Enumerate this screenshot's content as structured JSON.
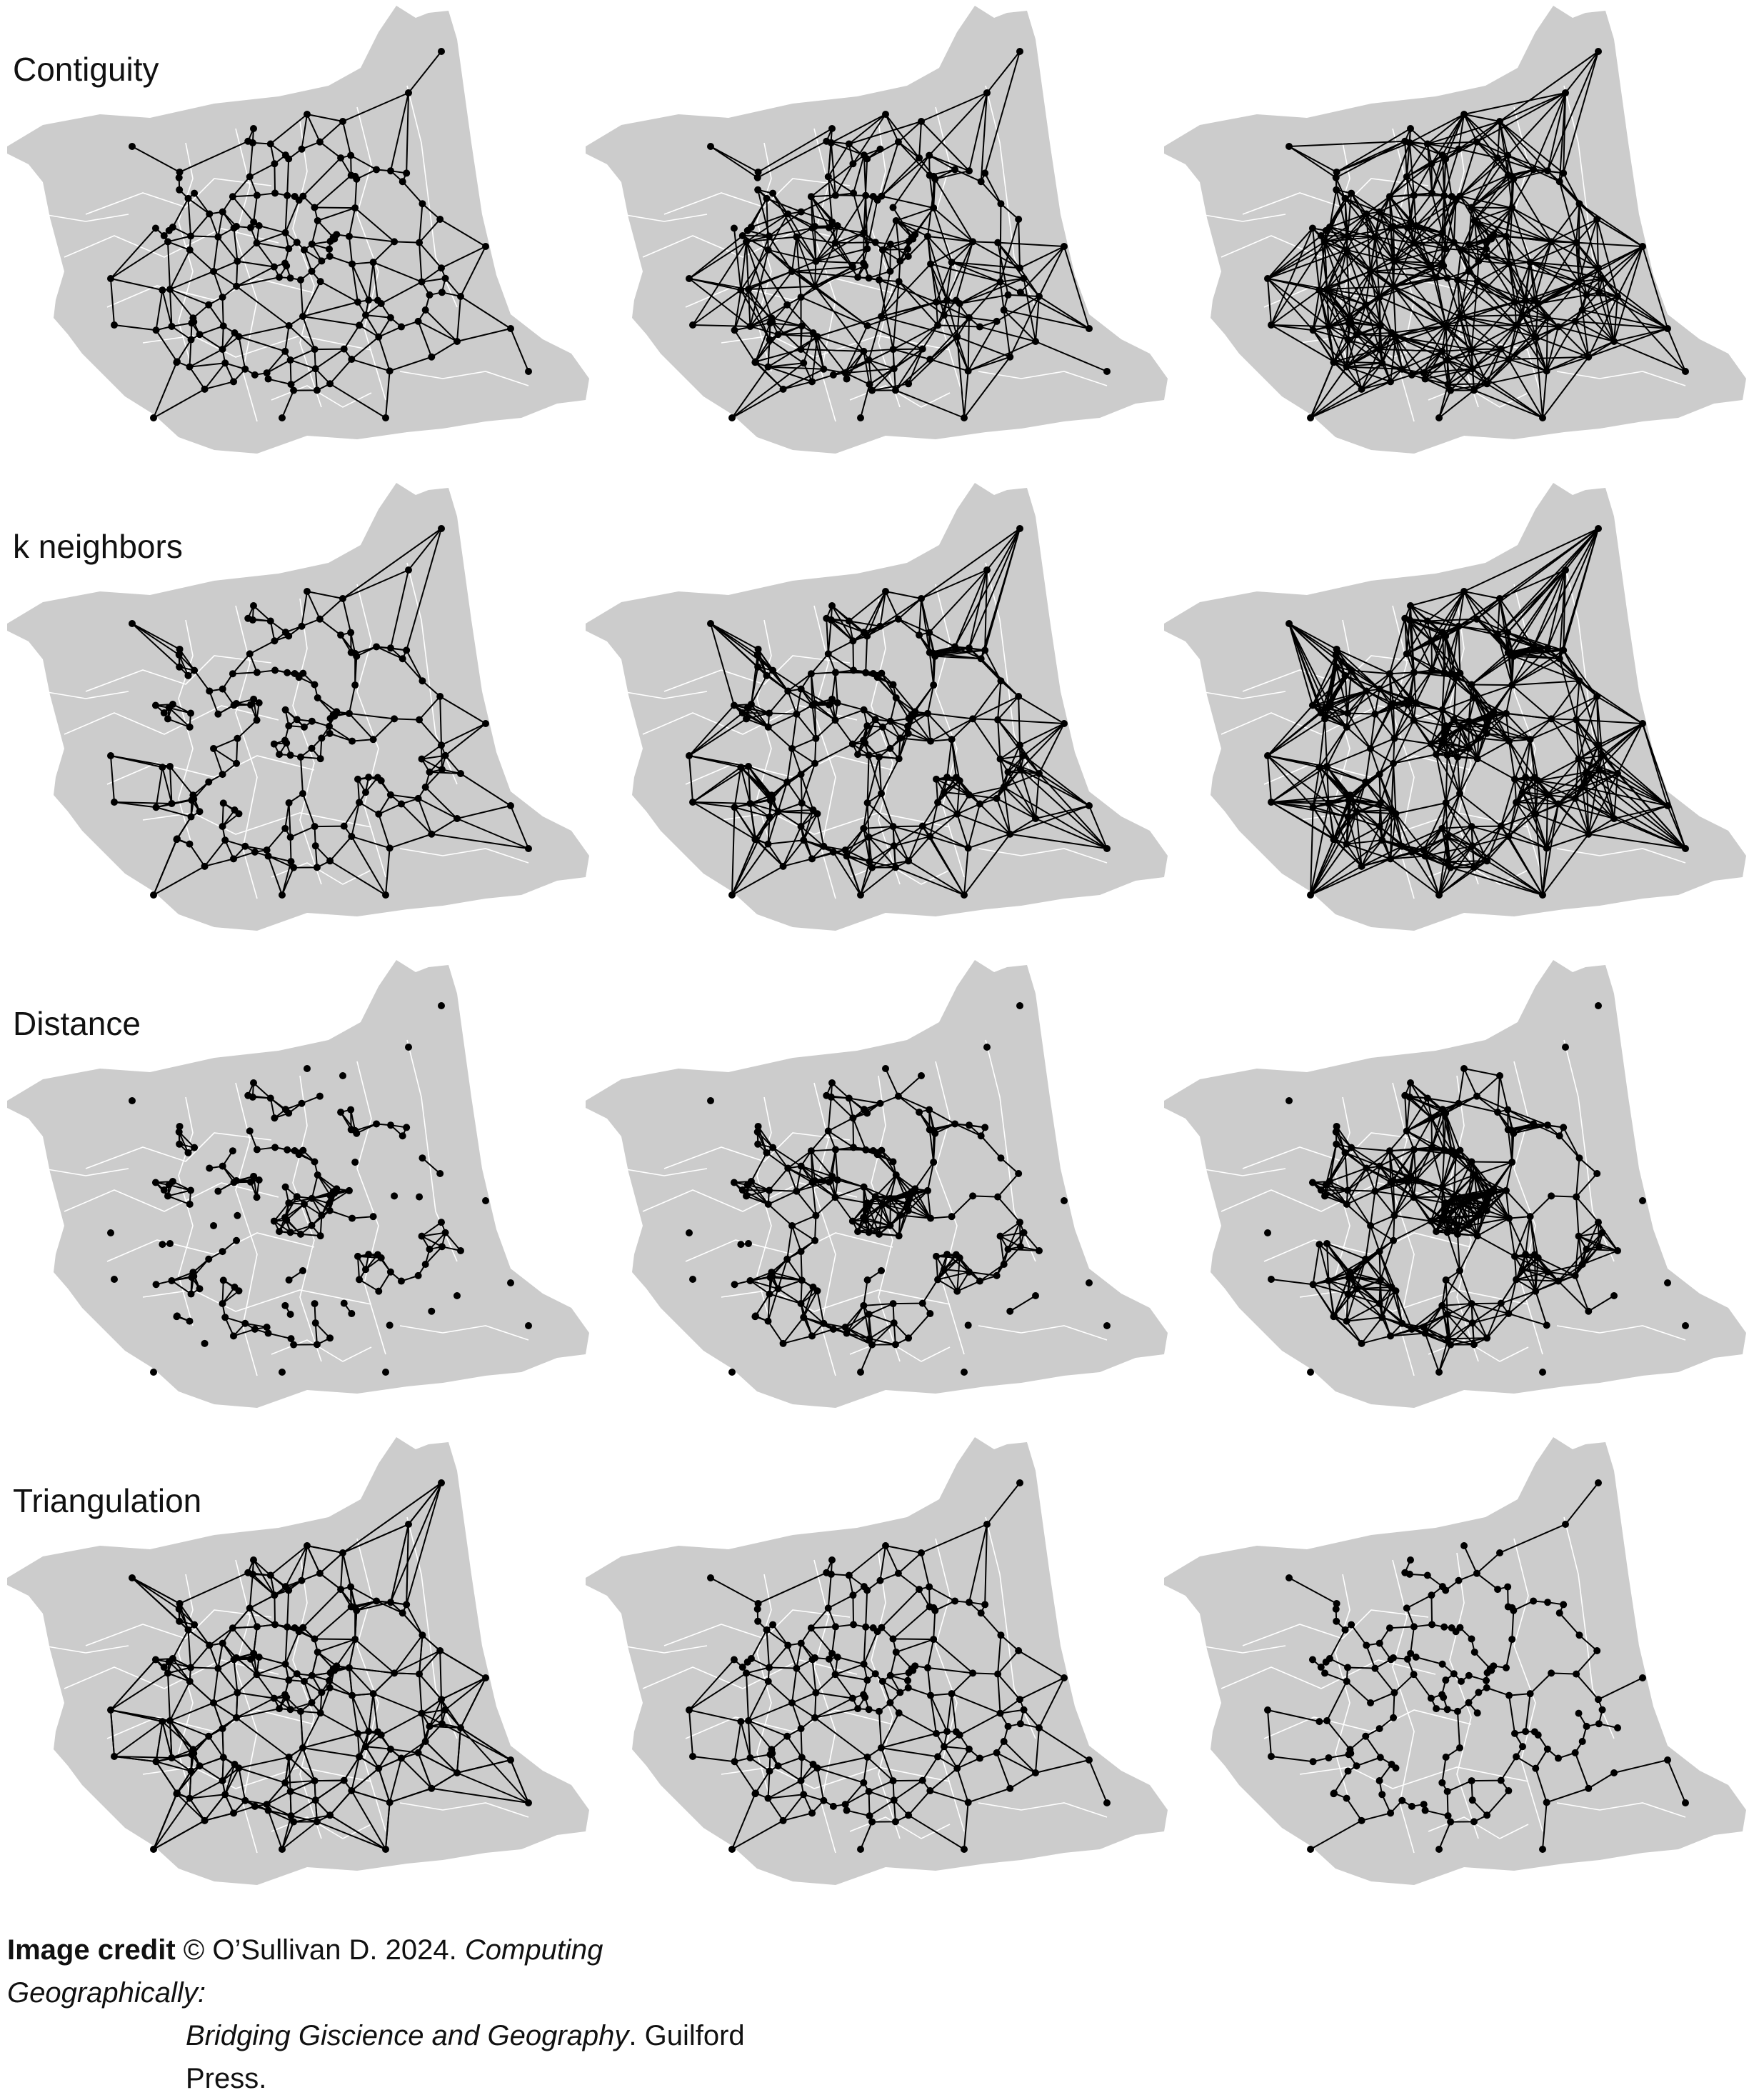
{
  "rows": [
    {
      "label": "Contiguity",
      "key": "contiguity"
    },
    {
      "label": "k neighbors",
      "key": "knn"
    },
    {
      "label": "Distance",
      "key": "distance"
    },
    {
      "label": "Triangulation",
      "key": "triangulation"
    }
  ],
  "panel_variants": [
    [
      "contiguity-queen",
      "contiguity-order2",
      "contiguity-order3"
    ],
    [
      "knn-k4",
      "knn-k8",
      "knn-k16"
    ],
    [
      "distance-short",
      "distance-medium",
      "distance-long"
    ],
    [
      "delaunay",
      "gabriel",
      "relative-neighbourhood"
    ]
  ],
  "colors": {
    "land": "#cccccc",
    "boundaries": "#ffffff",
    "links": "#000000",
    "nodes": "#000000"
  },
  "credit": {
    "lead": "Image credit",
    "part1": " © O’Sullivan D. 2024. ",
    "book_title_1": "Computing Geographically:",
    "book_title_2": "Bridging Giscience and Geography",
    "publisher": ". Guilford Press."
  }
}
